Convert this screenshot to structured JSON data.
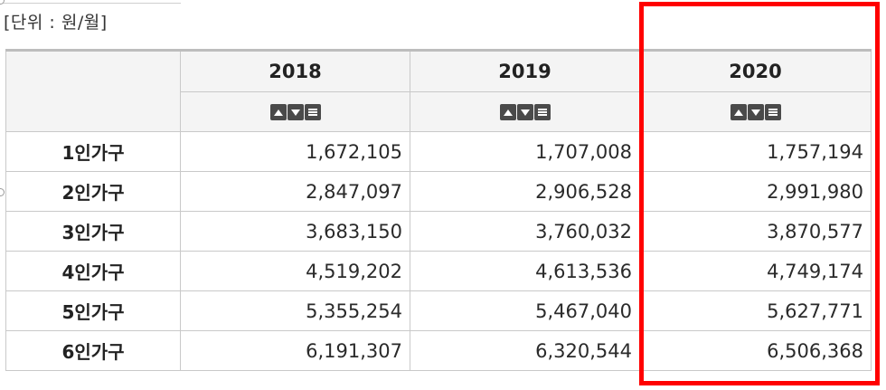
{
  "unit_label": "[단위 : 원/월]",
  "table": {
    "years": [
      "2018",
      "2019",
      "2020"
    ],
    "rows": [
      {
        "label": "1인가구",
        "values": [
          "1,672,105",
          "1,707,008",
          "1,757,194"
        ]
      },
      {
        "label": "2인가구",
        "values": [
          "2,847,097",
          "2,906,528",
          "2,991,980"
        ]
      },
      {
        "label": "3인가구",
        "values": [
          "3,683,150",
          "3,760,032",
          "3,870,577"
        ]
      },
      {
        "label": "4인가구",
        "values": [
          "4,519,202",
          "4,613,536",
          "4,749,174"
        ]
      },
      {
        "label": "5인가구",
        "values": [
          "5,355,254",
          "5,467,040",
          "5,627,771"
        ]
      },
      {
        "label": "6인가구",
        "values": [
          "6,191,307",
          "6,320,544",
          "6,506,368"
        ]
      }
    ]
  },
  "sort_icons": [
    "sort-ascending-icon",
    "sort-descending-icon",
    "sort-menu-icon"
  ],
  "highlight_color": "#ff0000"
}
